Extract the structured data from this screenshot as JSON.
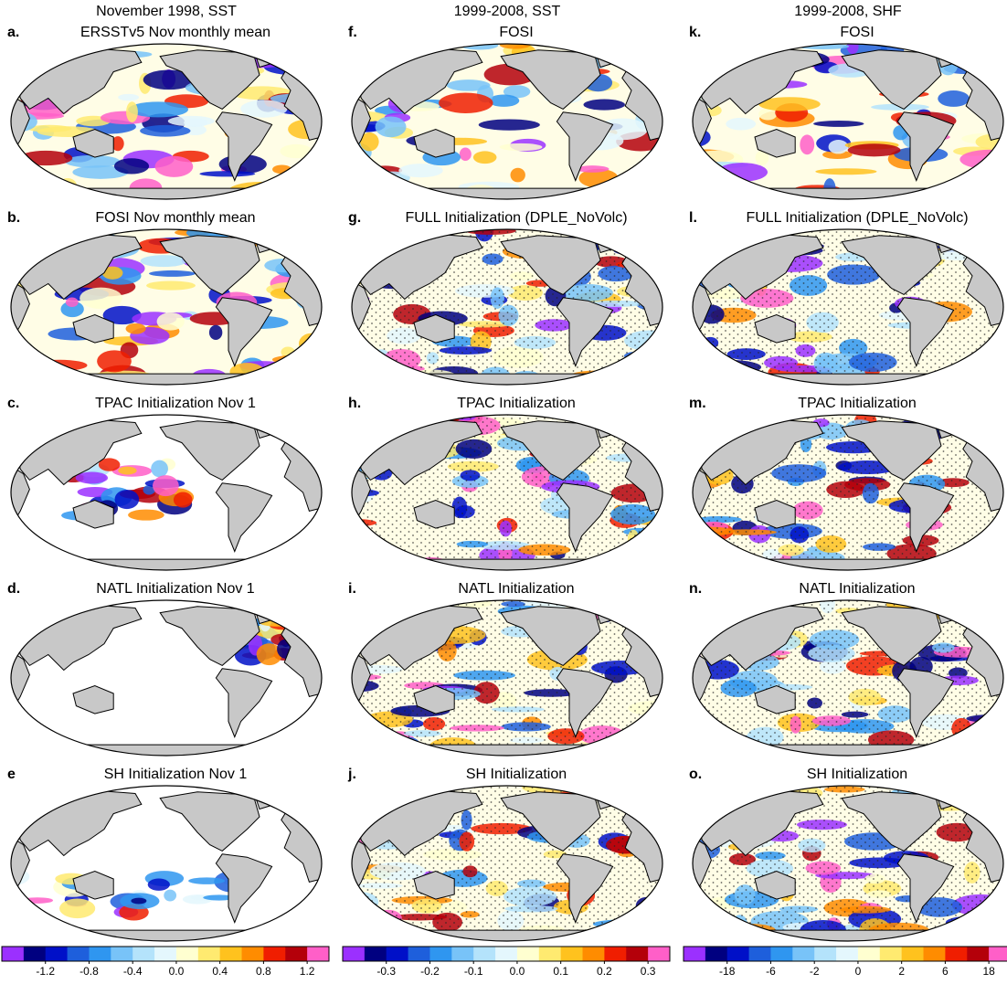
{
  "columns": [
    {
      "header": "November 1998, SST",
      "panels": [
        {
          "letter": "a.",
          "title": "ERSSTv5 Nov monthly mean"
        },
        {
          "letter": "b.",
          "title": "FOSI Nov monthly mean"
        },
        {
          "letter": "c.",
          "title": "TPAC Initialization Nov 1"
        },
        {
          "letter": "d.",
          "title": "NATL Initialization Nov 1"
        },
        {
          "letter": "e",
          "title": "SH Initialization Nov 1"
        }
      ],
      "colorbar": {
        "colors": [
          "#9b30ff",
          "#000080",
          "#0010c8",
          "#1e5fdc",
          "#2f96f0",
          "#78c3f8",
          "#b4e3fb",
          "#e4f7fd",
          "#ffffd0",
          "#ffea70",
          "#ffc21e",
          "#ff8c00",
          "#f01e00",
          "#b4000a",
          "#ff5fc8"
        ],
        "ticks": [
          -1.2,
          -0.8,
          -0.4,
          {
            "value": 0,
            "label": "0.0"
          },
          0.4,
          0.8,
          1.2
        ]
      }
    },
    {
      "header": "1999-2008, SST",
      "panels": [
        {
          "letter": "f.",
          "title": "FOSI"
        },
        {
          "letter": "g.",
          "title": "FULL Initialization (DPLE_NoVolc)"
        },
        {
          "letter": "h.",
          "title": "TPAC Initialization"
        },
        {
          "letter": "i.",
          "title": "NATL Initialization"
        },
        {
          "letter": "j.",
          "title": "SH Initialization"
        }
      ],
      "colorbar": {
        "colors": [
          "#9b30ff",
          "#000080",
          "#0010c8",
          "#1e5fdc",
          "#2f96f0",
          "#78c3f8",
          "#b4e3fb",
          "#e4f7fd",
          "#ffffd0",
          "#ffea70",
          "#ffc21e",
          "#ff8c00",
          "#f01e00",
          "#b4000a",
          "#ff5fc8"
        ],
        "ticks": [
          -0.3,
          -0.2,
          -0.1,
          {
            "value": 0,
            "label": "0.0"
          },
          0.1,
          0.2,
          0.3
        ]
      }
    },
    {
      "header": "1999-2008, SHF",
      "panels": [
        {
          "letter": "k.",
          "title": "FOSI"
        },
        {
          "letter": "l.",
          "title": "FULL Initialization (DPLE_NoVolc)"
        },
        {
          "letter": "m.",
          "title": "TPAC Initialization"
        },
        {
          "letter": "n.",
          "title": "NATL Initialization"
        },
        {
          "letter": "o.",
          "title": "SH Initialization"
        }
      ],
      "colorbar": {
        "colors": [
          "#9b30ff",
          "#000080",
          "#0010c8",
          "#1e5fdc",
          "#2f96f0",
          "#78c3f8",
          "#b4e3fb",
          "#e4f7fd",
          "#ffffd0",
          "#ffea70",
          "#ffc21e",
          "#ff8c00",
          "#f01e00",
          "#b4000a",
          "#ff5fc8"
        ],
        "ticks": [
          -18,
          -6,
          -2,
          0,
          2,
          6,
          18
        ]
      }
    }
  ]
}
